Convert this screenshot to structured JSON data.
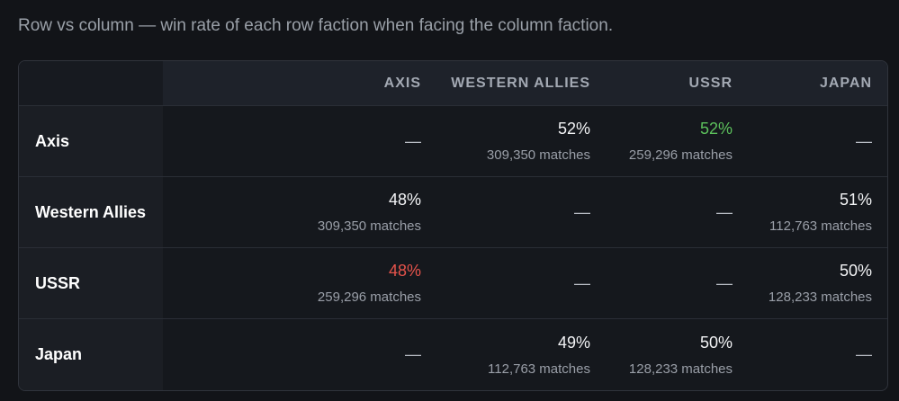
{
  "caption": "Row vs column — win rate of each row faction when facing the column faction.",
  "table": {
    "columns": [
      "AXIS",
      "WESTERN ALLIES",
      "USSR",
      "JAPAN"
    ],
    "rows": [
      {
        "label": "Axis",
        "cells": [
          {
            "text": "—"
          },
          {
            "rate": "52%",
            "matches": "309,350 matches"
          },
          {
            "rate": "52%",
            "matches": "259,296 matches",
            "color": "#5cc05c"
          },
          {
            "text": "—"
          }
        ]
      },
      {
        "label": "Western Allies",
        "cells": [
          {
            "rate": "48%",
            "matches": "309,350 matches"
          },
          {
            "text": "—"
          },
          {
            "text": "—"
          },
          {
            "rate": "51%",
            "matches": "112,763 matches"
          }
        ]
      },
      {
        "label": "USSR",
        "cells": [
          {
            "rate": "48%",
            "matches": "259,296 matches",
            "color": "#e5534b"
          },
          {
            "text": "—"
          },
          {
            "text": "—"
          },
          {
            "rate": "50%",
            "matches": "128,233 matches"
          }
        ]
      },
      {
        "label": "Japan",
        "cells": [
          {
            "text": "—"
          },
          {
            "rate": "49%",
            "matches": "112,763 matches"
          },
          {
            "rate": "50%",
            "matches": "128,233 matches"
          },
          {
            "text": "—"
          }
        ]
      }
    ]
  }
}
